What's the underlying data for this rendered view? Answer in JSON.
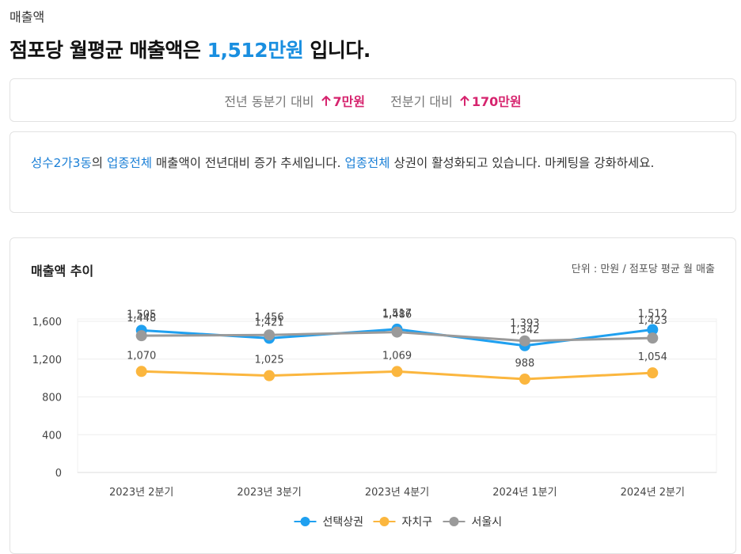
{
  "page": {
    "section_label": "매출액",
    "headline_prefix": "점포당 월평균 매출액은 ",
    "headline_value": "1,512만원",
    "headline_suffix": " 입니다."
  },
  "comparison": {
    "yoy_label": "전년 동분기 대비",
    "yoy_value": "7만원",
    "qoq_label": "전분기 대비",
    "qoq_value": "170만원",
    "trend": "up",
    "color": "#d6246e"
  },
  "insight": {
    "area": "성수2가3동",
    "part1": "의 ",
    "industry": "업종전체",
    "part2": " 매출액이 전년대비 증가 추세입니다. ",
    "industry2": "업종전체",
    "part3": " 상권이 활성화되고 있습니다. 마케팅을 강화하세요."
  },
  "colors": {
    "accent": "#1a8fe0",
    "highlight": "#1a7fd6",
    "up": "#d6246e"
  },
  "chart_data": {
    "type": "line",
    "title": "매출액 추이",
    "unit_note": "단위 : 만원 / 점포당 평균 월 매출",
    "categories": [
      "2023년 2분기",
      "2023년 3분기",
      "2023년 4분기",
      "2024년 1분기",
      "2024년 2분기"
    ],
    "y_ticks": [
      "0",
      "400",
      "800",
      "1,200",
      "1,600"
    ],
    "ylim": [
      0,
      1700
    ],
    "grid": true,
    "series": [
      {
        "name": "선택상권",
        "color": "#1fa0f0",
        "values": [
          1505,
          1421,
          1517,
          1342,
          1512
        ],
        "labels": [
          "1,505",
          "1,421",
          "1,517",
          "1,342",
          "1,512"
        ]
      },
      {
        "name": "자치구",
        "color": "#fbb63e",
        "values": [
          1070,
          1025,
          1069,
          988,
          1054
        ],
        "labels": [
          "1,070",
          "1,025",
          "1,069",
          "988",
          "1,054"
        ]
      },
      {
        "name": "서울시",
        "color": "#9a9a9a",
        "values": [
          1448,
          1456,
          1486,
          1393,
          1423
        ],
        "labels": [
          "1,448",
          "1,456",
          "1,486",
          "1,393",
          "1,423"
        ]
      }
    ],
    "legend_position": "bottom-center"
  }
}
